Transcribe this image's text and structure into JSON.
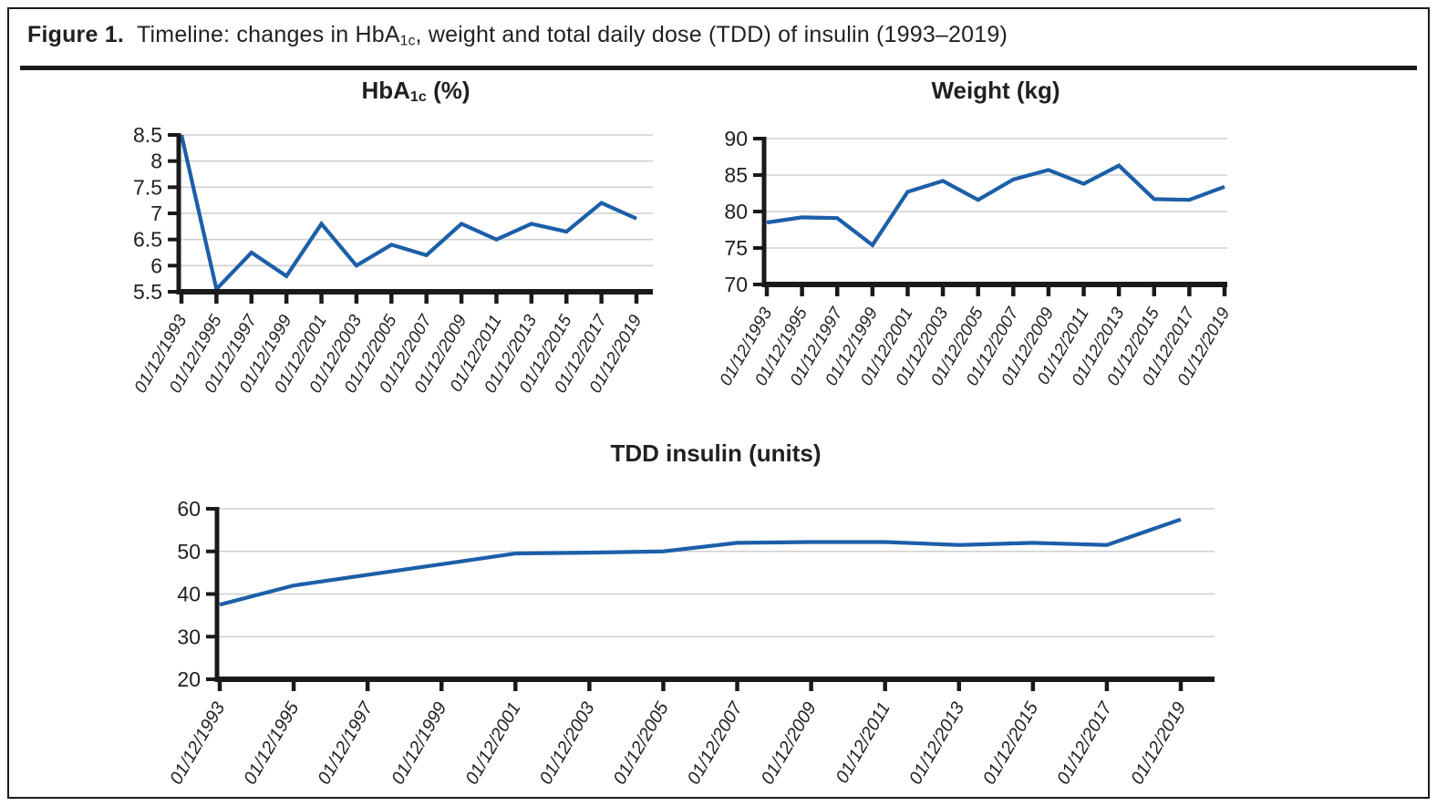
{
  "figure": {
    "label": "Figure 1.",
    "caption_parts": {
      "pre": "Timeline: changes in HbA",
      "sub": "1c",
      "post": ", weight and total daily dose (TDD) of insulin (1993–2019)"
    }
  },
  "colors": {
    "line": "#1c5fa8",
    "axis": "#1a1a1a",
    "grid": "#cfcfcf",
    "text": "#231f20"
  },
  "chart_data": [
    {
      "type": "line",
      "title": "HbA1c (%)",
      "title_parts": {
        "pre": "HbA",
        "sub": "1c",
        "post": " (%)"
      },
      "categories": [
        "01/12/1993",
        "01/12/1995",
        "01/12/1997",
        "01/12/1999",
        "01/12/2001",
        "01/12/2003",
        "01/12/2005",
        "01/12/2007",
        "01/12/2009",
        "01/12/2011",
        "01/12/2013",
        "01/12/2015",
        "01/12/2017",
        "01/12/2019"
      ],
      "values": [
        8.5,
        5.55,
        6.25,
        5.8,
        6.8,
        6.0,
        6.4,
        6.2,
        6.8,
        6.5,
        6.8,
        6.65,
        7.2,
        6.9
      ],
      "ylim": [
        5.5,
        8.5
      ],
      "yticks": [
        8.5,
        8,
        7.5,
        7,
        6.5,
        6,
        5.5
      ],
      "ytick_labels": [
        "8.5",
        "8",
        "7.5",
        "7",
        "6.5",
        "6",
        "5.5"
      ],
      "xlabel": "",
      "ylabel": "",
      "grid": true,
      "legend": "none"
    },
    {
      "type": "line",
      "title": "Weight (kg)",
      "categories": [
        "01/12/1993",
        "01/12/1995",
        "01/12/1997",
        "01/12/1999",
        "01/12/2001",
        "01/12/2003",
        "01/12/2005",
        "01/12/2007",
        "01/12/2009",
        "01/12/2011",
        "01/12/2013",
        "01/12/2015",
        "01/12/2017",
        "01/12/2019"
      ],
      "values": [
        78.5,
        79.2,
        79.1,
        75.4,
        82.7,
        84.2,
        81.6,
        84.4,
        85.7,
        83.8,
        86.3,
        81.7,
        81.6,
        83.4
      ],
      "ylim": [
        70,
        90
      ],
      "yticks": [
        90,
        85,
        80,
        75,
        70
      ],
      "ytick_labels": [
        "90",
        "85",
        "80",
        "75",
        "70"
      ],
      "xlabel": "",
      "ylabel": "",
      "grid": true,
      "legend": "none"
    },
    {
      "type": "line",
      "title": "TDD insulin (units)",
      "categories": [
        "01/12/1993",
        "01/12/1995",
        "01/12/1997",
        "01/12/1999",
        "01/12/2001",
        "01/12/2003",
        "01/12/2005",
        "01/12/2007",
        "01/12/2009",
        "01/12/2011",
        "01/12/2013",
        "01/12/2015",
        "01/12/2017",
        "01/12/2019"
      ],
      "values": [
        37.5,
        42,
        44.5,
        47,
        49.5,
        49.7,
        50,
        52,
        52.2,
        52.2,
        51.5,
        52,
        51.5,
        57.5
      ],
      "ylim": [
        20,
        60
      ],
      "yticks": [
        60,
        50,
        40,
        30,
        20
      ],
      "ytick_labels": [
        "60",
        "50",
        "40",
        "30",
        "20"
      ],
      "xlabel": "",
      "ylabel": "",
      "grid": true,
      "legend": "none"
    }
  ]
}
